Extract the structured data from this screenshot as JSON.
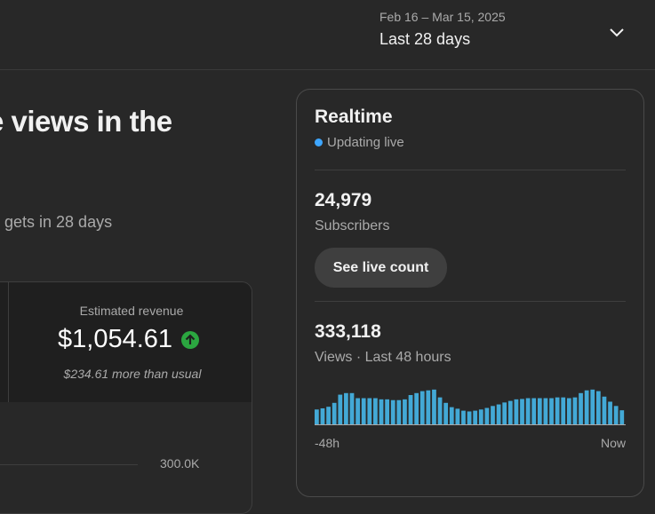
{
  "header": {
    "date_range": "Feb 16 – Mar 15, 2025",
    "period_label": "Last 28 days"
  },
  "main": {
    "headline": "e views in the",
    "subline": "gets in 28 days",
    "metric": {
      "label": "Estimated revenue",
      "value": "$1,054.61",
      "note": "$234.61 more than usual",
      "trend_icon": "arrow-up-icon",
      "trend_color": "#2ba640"
    },
    "chart_tick": "300.0K"
  },
  "realtime": {
    "title": "Realtime",
    "live_label": "Updating live",
    "live_color": "#3ea6ff",
    "subscribers_value": "24,979",
    "subscribers_label": "Subscribers",
    "button_label": "See live count",
    "views_value": "333,118",
    "views_label": "Views · Last 48 hours",
    "axis_start": "-48h",
    "axis_end": "Now",
    "bar_color": "#43a9d6",
    "bars": [
      0.38,
      0.41,
      0.45,
      0.55,
      0.76,
      0.8,
      0.8,
      0.67,
      0.67,
      0.67,
      0.67,
      0.64,
      0.64,
      0.62,
      0.62,
      0.64,
      0.75,
      0.8,
      0.85,
      0.87,
      0.89,
      0.69,
      0.55,
      0.44,
      0.4,
      0.35,
      0.33,
      0.35,
      0.38,
      0.42,
      0.47,
      0.51,
      0.56,
      0.6,
      0.64,
      0.65,
      0.67,
      0.67,
      0.67,
      0.67,
      0.67,
      0.69,
      0.69,
      0.67,
      0.69,
      0.8,
      0.87,
      0.89,
      0.85,
      0.71,
      0.58,
      0.47,
      0.36
    ]
  }
}
